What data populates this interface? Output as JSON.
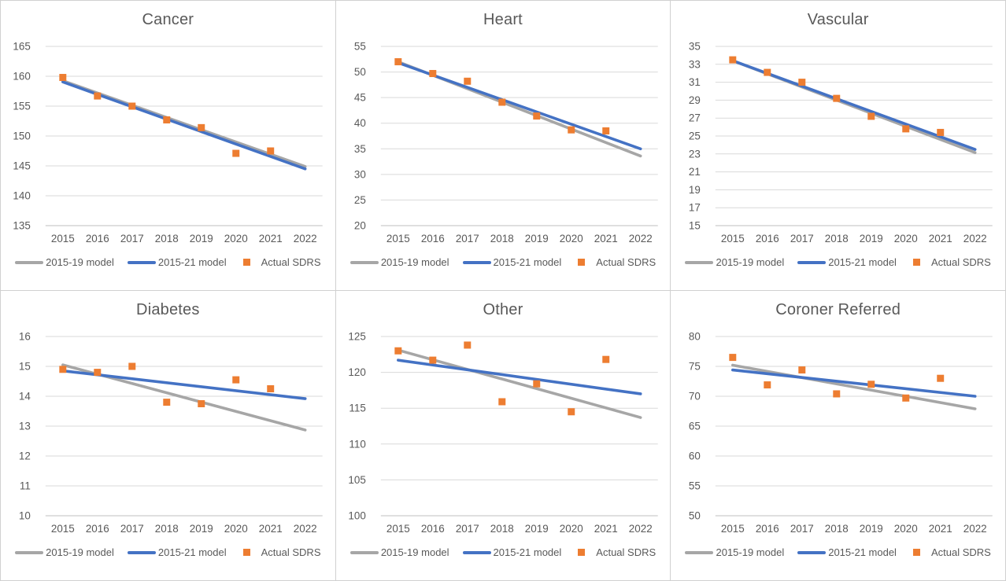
{
  "colors": {
    "gray": "#a6a6a6",
    "blue": "#4472c4",
    "orange": "#ed7d31",
    "grid": "#d9d9d9",
    "axis": "#bfbfbf",
    "text": "#595959"
  },
  "legend": {
    "items": [
      "2015-19 model",
      "2015-21 model",
      "Actual SDRS"
    ]
  },
  "chart_data": [
    {
      "type": "line",
      "title": "Cancer",
      "categories": [
        "2015",
        "2016",
        "2017",
        "2018",
        "2019",
        "2020",
        "2021",
        "2022"
      ],
      "xlabel": "",
      "ylabel": "",
      "ylim": [
        135,
        165
      ],
      "ytick_step": 5,
      "grid": true,
      "legend_position": "bottom",
      "series": [
        {
          "name": "2015-19 model",
          "kind": "line",
          "color": "gray",
          "x": [
            2015,
            2022
          ],
          "values": [
            159.25,
            144.9
          ]
        },
        {
          "name": "2015-21 model",
          "kind": "line",
          "color": "blue",
          "x": [
            2015,
            2022
          ],
          "values": [
            159.05,
            144.5
          ]
        },
        {
          "name": "Actual SDRS",
          "kind": "scatter",
          "color": "orange",
          "x": [
            2015,
            2016,
            2017,
            2018,
            2019,
            2020,
            2021
          ],
          "values": [
            159.8,
            156.7,
            155.0,
            152.7,
            151.4,
            147.1,
            147.5
          ]
        }
      ]
    },
    {
      "type": "line",
      "title": "Heart",
      "categories": [
        "2015",
        "2016",
        "2017",
        "2018",
        "2019",
        "2020",
        "2021",
        "2022"
      ],
      "xlabel": "",
      "ylabel": "",
      "ylim": [
        20,
        55
      ],
      "ytick_step": 5,
      "grid": true,
      "legend_position": "bottom",
      "series": [
        {
          "name": "2015-19 model",
          "kind": "line",
          "color": "gray",
          "x": [
            2015,
            2022
          ],
          "values": [
            52.0,
            33.6
          ]
        },
        {
          "name": "2015-21 model",
          "kind": "line",
          "color": "blue",
          "x": [
            2015,
            2022
          ],
          "values": [
            51.8,
            35.0
          ]
        },
        {
          "name": "Actual SDRS",
          "kind": "scatter",
          "color": "orange",
          "x": [
            2015,
            2016,
            2017,
            2018,
            2019,
            2020,
            2021
          ],
          "values": [
            52.0,
            49.7,
            48.2,
            44.1,
            41.4,
            38.7,
            38.5
          ]
        }
      ]
    },
    {
      "type": "line",
      "title": "Vascular",
      "categories": [
        "2015",
        "2016",
        "2017",
        "2018",
        "2019",
        "2020",
        "2021",
        "2022"
      ],
      "xlabel": "",
      "ylabel": "",
      "ylim": [
        15,
        35
      ],
      "ytick_step": 2,
      "grid": true,
      "legend_position": "bottom",
      "series": [
        {
          "name": "2015-19 model",
          "kind": "line",
          "color": "gray",
          "x": [
            2015,
            2022
          ],
          "values": [
            33.4,
            23.15
          ]
        },
        {
          "name": "2015-21 model",
          "kind": "line",
          "color": "blue",
          "x": [
            2015,
            2022
          ],
          "values": [
            33.4,
            23.5
          ]
        },
        {
          "name": "Actual SDRS",
          "kind": "scatter",
          "color": "orange",
          "x": [
            2015,
            2016,
            2017,
            2018,
            2019,
            2020,
            2021
          ],
          "values": [
            33.5,
            32.1,
            31.0,
            29.2,
            27.2,
            25.8,
            25.4
          ]
        }
      ]
    },
    {
      "type": "line",
      "title": "Diabetes",
      "categories": [
        "2015",
        "2016",
        "2017",
        "2018",
        "2019",
        "2020",
        "2021",
        "2022"
      ],
      "xlabel": "",
      "ylabel": "",
      "ylim": [
        10,
        16
      ],
      "ytick_step": 1,
      "grid": true,
      "legend_position": "bottom",
      "series": [
        {
          "name": "2015-19 model",
          "kind": "line",
          "color": "gray",
          "x": [
            2015,
            2022
          ],
          "values": [
            15.05,
            12.87
          ]
        },
        {
          "name": "2015-21 model",
          "kind": "line",
          "color": "blue",
          "x": [
            2015,
            2022
          ],
          "values": [
            14.85,
            13.92
          ]
        },
        {
          "name": "Actual SDRS",
          "kind": "scatter",
          "color": "orange",
          "x": [
            2015,
            2016,
            2017,
            2018,
            2019,
            2020,
            2021
          ],
          "values": [
            14.9,
            14.8,
            15.0,
            13.8,
            13.75,
            14.55,
            14.25
          ]
        }
      ]
    },
    {
      "type": "line",
      "title": "Other",
      "categories": [
        "2015",
        "2016",
        "2017",
        "2018",
        "2019",
        "2020",
        "2021",
        "2022"
      ],
      "xlabel": "",
      "ylabel": "",
      "ylim": [
        100,
        125
      ],
      "ytick_step": 5,
      "grid": true,
      "legend_position": "bottom",
      "series": [
        {
          "name": "2015-19 model",
          "kind": "line",
          "color": "gray",
          "x": [
            2015,
            2022
          ],
          "values": [
            123.1,
            113.7
          ]
        },
        {
          "name": "2015-21 model",
          "kind": "line",
          "color": "blue",
          "x": [
            2015,
            2022
          ],
          "values": [
            121.7,
            117.0
          ]
        },
        {
          "name": "Actual SDRS",
          "kind": "scatter",
          "color": "orange",
          "x": [
            2015,
            2016,
            2017,
            2018,
            2019,
            2020,
            2021
          ],
          "values": [
            123.0,
            121.7,
            123.8,
            115.9,
            118.4,
            114.5,
            121.8
          ]
        }
      ]
    },
    {
      "type": "line",
      "title": "Coroner Referred",
      "categories": [
        "2015",
        "2016",
        "2017",
        "2018",
        "2019",
        "2020",
        "2021",
        "2022"
      ],
      "xlabel": "",
      "ylabel": "",
      "ylim": [
        50,
        80
      ],
      "ytick_step": 5,
      "grid": true,
      "legend_position": "bottom",
      "series": [
        {
          "name": "2015-19 model",
          "kind": "line",
          "color": "gray",
          "x": [
            2015,
            2022
          ],
          "values": [
            75.2,
            67.9
          ]
        },
        {
          "name": "2015-21 model",
          "kind": "line",
          "color": "blue",
          "x": [
            2015,
            2022
          ],
          "values": [
            74.4,
            70.0
          ]
        },
        {
          "name": "Actual SDRS",
          "kind": "scatter",
          "color": "orange",
          "x": [
            2015,
            2016,
            2017,
            2018,
            2019,
            2020,
            2021
          ],
          "values": [
            76.5,
            71.9,
            74.4,
            70.4,
            72.0,
            69.7,
            73.0
          ]
        }
      ]
    }
  ]
}
